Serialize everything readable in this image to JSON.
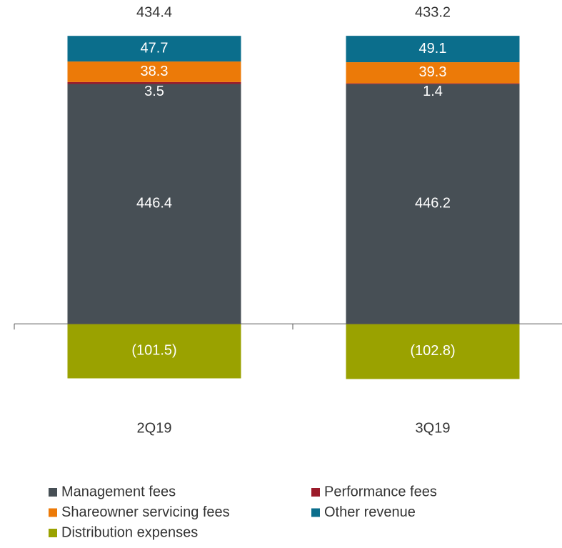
{
  "chart_data": {
    "type": "stacked_bar",
    "categories": [
      "2Q19",
      "3Q19"
    ],
    "series": [
      {
        "name": "Management fees",
        "color": "#474f55",
        "values": [
          446.4,
          446.2
        ]
      },
      {
        "name": "Performance fees",
        "color": "#9b1b2a",
        "values": [
          3.5,
          1.4
        ]
      },
      {
        "name": "Shareowner servicing fees",
        "color": "#ec7a08",
        "values": [
          38.3,
          39.3
        ]
      },
      {
        "name": "Other revenue",
        "color": "#0b6e8c",
        "values": [
          47.7,
          49.1
        ]
      },
      {
        "name": "Distribution expenses",
        "color": "#9aa200",
        "values": [
          -101.5,
          -102.8
        ],
        "value_labels": [
          "(101.5)",
          "(102.8)"
        ]
      }
    ],
    "totals": [
      434.4,
      433.2
    ],
    "ylim": [
      -150,
      600
    ],
    "legend": "bottom"
  }
}
